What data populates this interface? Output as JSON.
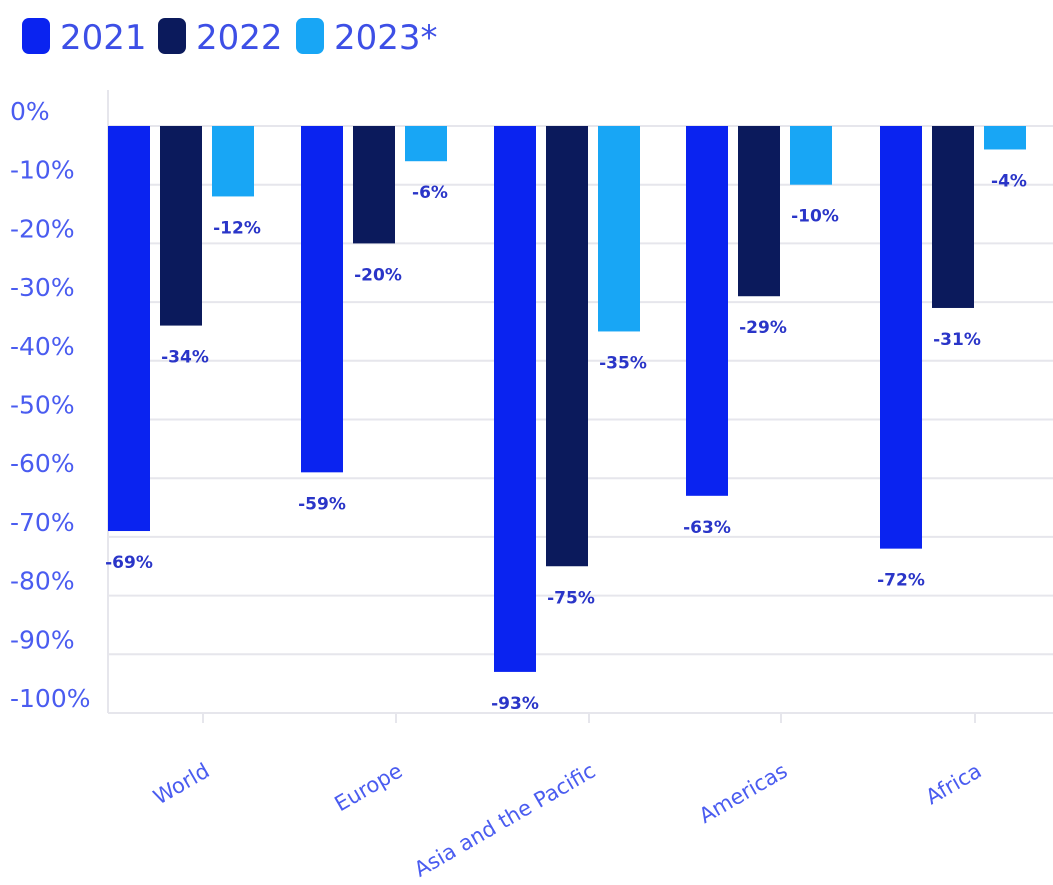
{
  "chart_data": {
    "type": "bar",
    "categories": [
      "World",
      "Europe",
      "Asia and the Pacific",
      "Americas",
      "Africa"
    ],
    "series": [
      {
        "name": "2021",
        "color": "#0a23f0",
        "values": [
          -69,
          -59,
          -93,
          -63,
          -72
        ]
      },
      {
        "name": "2022",
        "color": "#0b1a5c",
        "values": [
          -34,
          -20,
          -75,
          -29,
          -31
        ]
      },
      {
        "name": "2023*",
        "color": "#18a6f5",
        "values": [
          -12,
          -6,
          -35,
          -10,
          -4
        ]
      }
    ],
    "data_labels": [
      [
        "-69%",
        "-34%",
        "-12%"
      ],
      [
        "-59%",
        "-20%",
        "-6%"
      ],
      [
        "-93%",
        "-75%",
        "-35%"
      ],
      [
        "-63%",
        "-29%",
        "-10%"
      ],
      [
        "-72%",
        "-31%",
        "-4%"
      ]
    ],
    "y_ticks": [
      "0%",
      "-10%",
      "-20%",
      "-30%",
      "-40%",
      "-50%",
      "-60%",
      "-70%",
      "-80%",
      "-90%",
      "-100%"
    ],
    "ylim": [
      -100,
      0
    ],
    "grid": true,
    "legend_position": "top-left",
    "title": "",
    "xlabel": "",
    "ylabel": ""
  }
}
